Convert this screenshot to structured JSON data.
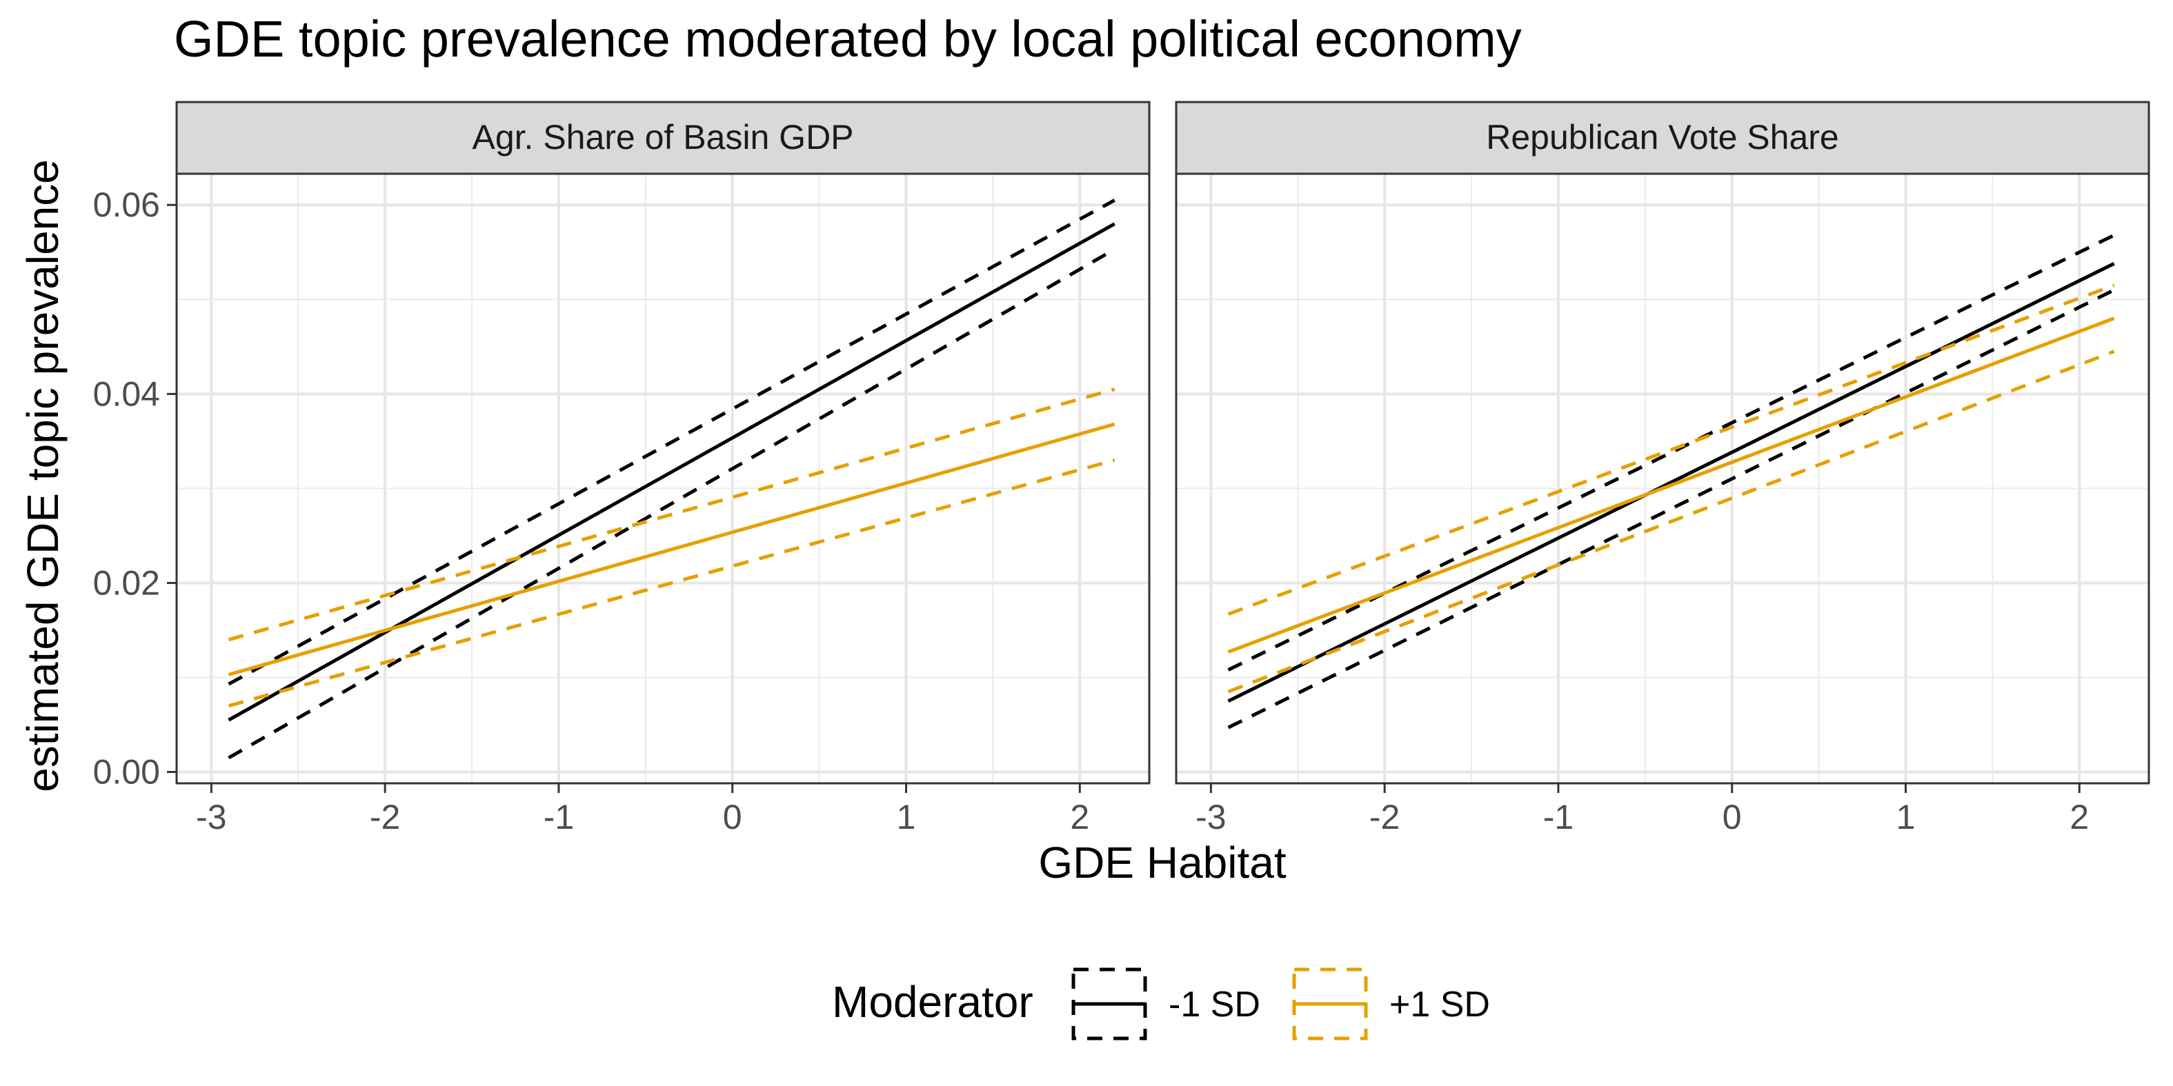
{
  "chart_data": {
    "type": "line",
    "title": "GDE topic prevalence moderated by local political economy",
    "xlabel": "GDE Habitat",
    "ylabel": "estimated GDE topic prevalence",
    "xlim": [
      -3.2,
      2.4
    ],
    "ylim": [
      -0.0012,
      0.0633
    ],
    "x_ticks": [
      -3,
      -2,
      -1,
      0,
      1,
      2
    ],
    "x_tick_labels": [
      "-3",
      "-2",
      "-1",
      "0",
      "1",
      "2"
    ],
    "y_ticks": [
      0.0,
      0.02,
      0.04,
      0.06
    ],
    "y_tick_labels": [
      "0.00",
      "0.02",
      "0.04",
      "0.06"
    ],
    "grid": true,
    "legend": {
      "title": "Moderator",
      "placement": "bottom",
      "entries": [
        {
          "label": "-1 SD",
          "color": "#000000"
        },
        {
          "label": "+1 SD",
          "color": "#E69F00"
        }
      ]
    },
    "panels": [
      {
        "strip": "Agr. Share of Basin GDP",
        "series": [
          {
            "name": "-1 SD",
            "color": "#000000",
            "x": [
              -2.9,
              2.2
            ],
            "fit": [
              0.0055,
              0.058
            ],
            "lower": [
              0.0015,
              0.0553
            ],
            "upper": [
              0.0093,
              0.0605
            ]
          },
          {
            "name": "+1 SD",
            "color": "#E69F00",
            "x": [
              -2.9,
              2.2
            ],
            "fit": [
              0.0103,
              0.0368
            ],
            "lower": [
              0.007,
              0.033
            ],
            "upper": [
              0.014,
              0.0405
            ]
          }
        ]
      },
      {
        "strip": "Republican Vote Share",
        "series": [
          {
            "name": "-1 SD",
            "color": "#000000",
            "x": [
              -2.9,
              2.2
            ],
            "fit": [
              0.0075,
              0.0538
            ],
            "lower": [
              0.0047,
              0.051
            ],
            "upper": [
              0.0108,
              0.0568
            ]
          },
          {
            "name": "+1 SD",
            "color": "#E69F00",
            "x": [
              -2.9,
              2.2
            ],
            "fit": [
              0.0127,
              0.048
            ],
            "lower": [
              0.0085,
              0.0445
            ],
            "upper": [
              0.0167,
              0.0515
            ]
          }
        ]
      }
    ]
  }
}
